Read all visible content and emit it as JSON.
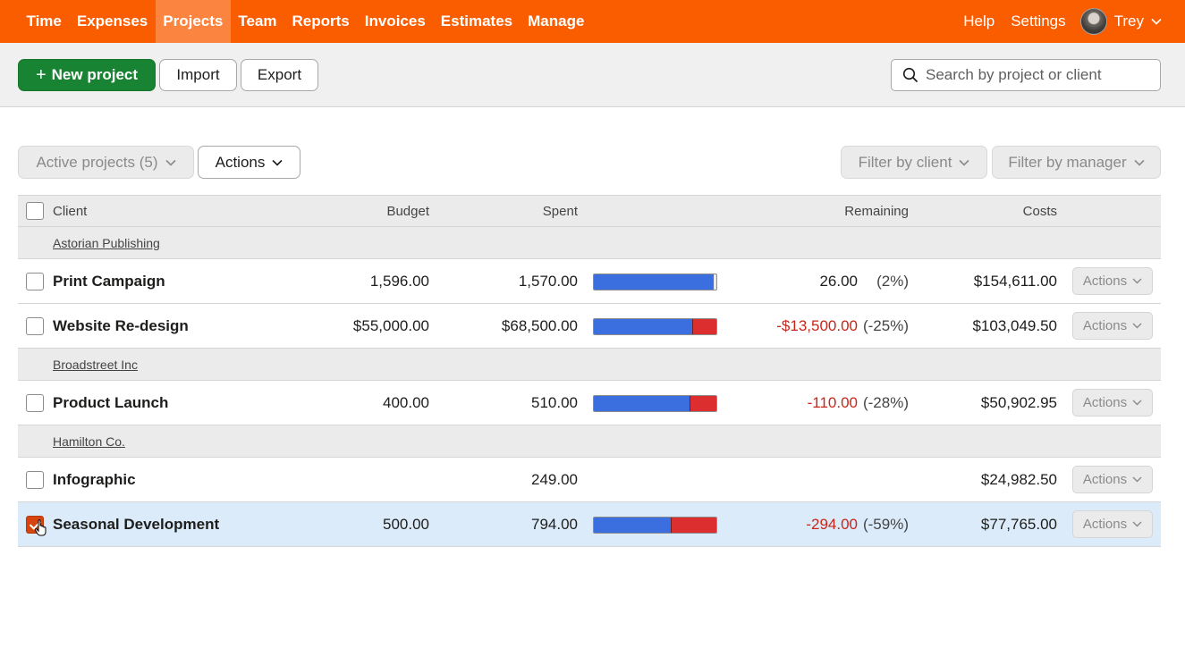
{
  "nav": {
    "items": [
      {
        "label": "Time",
        "active": false
      },
      {
        "label": "Expenses",
        "active": false
      },
      {
        "label": "Projects",
        "active": true
      },
      {
        "label": "Team",
        "active": false
      },
      {
        "label": "Reports",
        "active": false
      },
      {
        "label": "Invoices",
        "active": false
      },
      {
        "label": "Estimates",
        "active": false
      },
      {
        "label": "Manage",
        "active": false
      }
    ],
    "help": "Help",
    "settings": "Settings",
    "user": "Trey"
  },
  "toolbar": {
    "new_project": "New project",
    "import": "Import",
    "export": "Export",
    "search_placeholder": "Search by project or client"
  },
  "filters": {
    "active_projects": "Active projects (5)",
    "actions": "Actions",
    "filter_client": "Filter by client",
    "filter_manager": "Filter by manager"
  },
  "table": {
    "headers": {
      "client": "Client",
      "budget": "Budget",
      "spent": "Spent",
      "remaining": "Remaining",
      "costs": "Costs"
    },
    "row_action_label": "Actions",
    "groups": [
      {
        "client": "Astorian Publishing",
        "projects": [
          {
            "name": "Print Campaign",
            "budget": "1,596.00",
            "spent": "1,570.00",
            "spent_fraction": 0.98,
            "over_fraction": 0,
            "remaining": "26.00",
            "percent": "(2%)",
            "negative": false,
            "costs": "$154,611.00",
            "selected": false
          },
          {
            "name": "Website Re-design",
            "budget": "$55,000.00",
            "spent": "$68,500.00",
            "spent_fraction": 0.8,
            "over_fraction": 0.2,
            "remaining": "-$13,500.00",
            "percent": "(-25%)",
            "negative": true,
            "costs": "$103,049.50",
            "selected": false
          }
        ]
      },
      {
        "client": "Broadstreet Inc",
        "projects": [
          {
            "name": "Product Launch",
            "budget": "400.00",
            "spent": "510.00",
            "spent_fraction": 0.78,
            "over_fraction": 0.22,
            "remaining": "-110.00",
            "percent": "(-28%)",
            "negative": true,
            "costs": "$50,902.95",
            "selected": false
          }
        ]
      },
      {
        "client": "Hamilton Co.",
        "projects": [
          {
            "name": "Infographic",
            "budget": "",
            "spent": "249.00",
            "spent_fraction": null,
            "over_fraction": null,
            "remaining": "",
            "percent": "",
            "negative": false,
            "costs": "$24,982.50",
            "selected": false
          },
          {
            "name": "Seasonal Development",
            "budget": "500.00",
            "spent": "794.00",
            "spent_fraction": 0.63,
            "over_fraction": 0.37,
            "remaining": "-294.00",
            "percent": "(-59%)",
            "negative": true,
            "costs": "$77,765.00",
            "selected": true
          }
        ]
      }
    ]
  },
  "colors": {
    "brand": "#fa5d00",
    "primary_button": "#188433",
    "bar_spent": "#3b6fe0",
    "bar_over": "#dc2e2e",
    "negative_text": "#c7271a",
    "selected_row": "#dcebfa"
  }
}
